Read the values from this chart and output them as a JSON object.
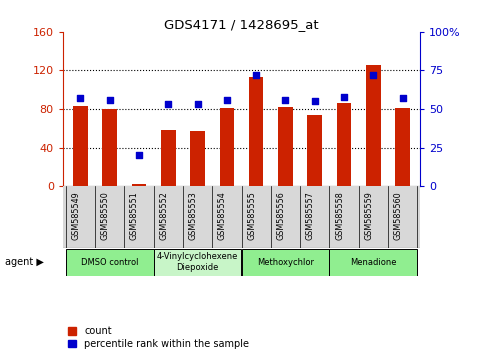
{
  "title": "GDS4171 / 1428695_at",
  "samples": [
    "GSM585549",
    "GSM585550",
    "GSM585551",
    "GSM585552",
    "GSM585553",
    "GSM585554",
    "GSM585555",
    "GSM585556",
    "GSM585557",
    "GSM585558",
    "GSM585559",
    "GSM585560"
  ],
  "counts": [
    83,
    80,
    2,
    58,
    57,
    81,
    113,
    82,
    74,
    86,
    126,
    81
  ],
  "percentiles": [
    57,
    56,
    20,
    53,
    53,
    56,
    72,
    56,
    55,
    58,
    72,
    57
  ],
  "agents": [
    {
      "label": "DMSO control",
      "start": 0,
      "end": 3,
      "color": "#90EE90"
    },
    {
      "label": "4-Vinylcyclohexene\nDiepoxide",
      "start": 3,
      "end": 6,
      "color": "#c8f5c8"
    },
    {
      "label": "Methoxychlor",
      "start": 6,
      "end": 9,
      "color": "#90EE90"
    },
    {
      "label": "Menadione",
      "start": 9,
      "end": 12,
      "color": "#90EE90"
    }
  ],
  "bar_color": "#CC2200",
  "dot_color": "#0000CC",
  "left_ylim": [
    0,
    160
  ],
  "left_yticks": [
    0,
    40,
    80,
    120,
    160
  ],
  "right_ylim": [
    0,
    100
  ],
  "right_yticks": [
    0,
    25,
    50,
    75,
    100
  ],
  "right_yticklabels": [
    "0",
    "25",
    "50",
    "75",
    "100%"
  ],
  "bar_width": 0.5,
  "background_color": "#ffffff",
  "plot_bg_color": "#ffffff",
  "label_bg_color": "#d8d8d8",
  "grid_lines": [
    40,
    80,
    120
  ]
}
